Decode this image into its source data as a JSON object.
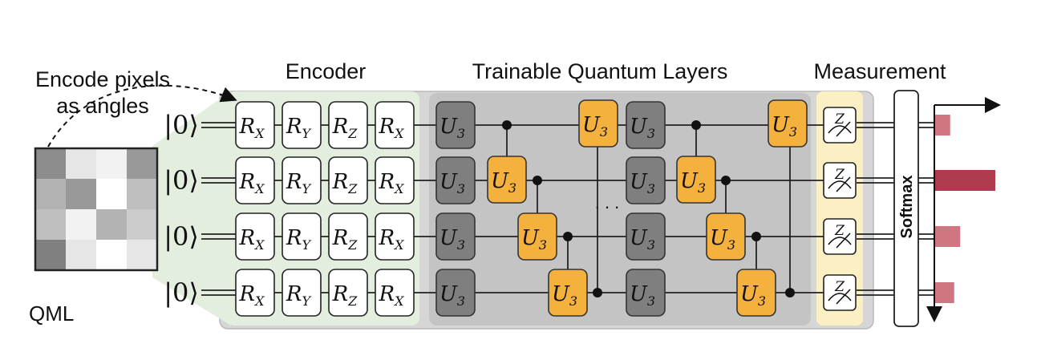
{
  "labels": {
    "encode_line1": "Encode pixels",
    "encode_line2": "as angles",
    "encoder": "Encoder",
    "trainable": "Trainable Quantum Layers",
    "measurement": "Measurement",
    "softmax": "Softmax",
    "qml": "QML",
    "ellipsis": ". . ."
  },
  "qubits": [
    {
      "state": "|0⟩"
    },
    {
      "state": "|0⟩"
    },
    {
      "state": "|0⟩"
    },
    {
      "state": "|0⟩"
    }
  ],
  "encoder_gates": [
    {
      "base": "R",
      "sub": "X"
    },
    {
      "base": "R",
      "sub": "Y"
    },
    {
      "base": "R",
      "sub": "Z"
    },
    {
      "base": "R",
      "sub": "X"
    }
  ],
  "unitary": {
    "base": "U",
    "sub": "3"
  },
  "measure_basis": "Z",
  "pixel_grid": [
    [
      0.55,
      0.9,
      0.95,
      0.6
    ],
    [
      0.7,
      0.6,
      1.0,
      0.75
    ],
    [
      0.75,
      0.95,
      0.7,
      0.8
    ],
    [
      0.5,
      0.9,
      1.0,
      0.9
    ]
  ],
  "output_bars": [
    0.15,
    0.6,
    0.25,
    0.19
  ],
  "colors": {
    "bar_highlight": "#b03a4d",
    "bar_normal": "#d07683",
    "orange_gate": "#f5b13e",
    "gray_gate": "#7f7f7f",
    "encoder_bg": "#e3eedf",
    "layers_bg": "#c4c4c4",
    "measure_bg": "#fbf0c4",
    "qml_text": "#a8283f"
  }
}
